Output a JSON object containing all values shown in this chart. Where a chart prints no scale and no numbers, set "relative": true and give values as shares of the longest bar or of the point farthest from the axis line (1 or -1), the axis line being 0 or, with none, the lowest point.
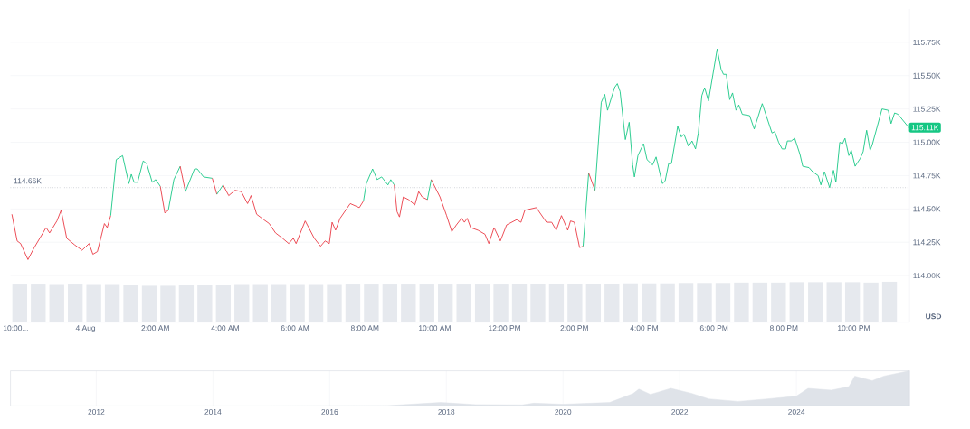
{
  "chart_data": [
    {
      "type": "line",
      "xlim": [
        -2.15,
        23.6
      ],
      "ylim": [
        113.65,
        116.0
      ],
      "grid": "y",
      "xticks": [
        {
          "value": -2,
          "label": "10:00..."
        },
        {
          "value": 0,
          "label": "4 Aug"
        },
        {
          "value": 2,
          "label": "2:00 AM"
        },
        {
          "value": 4,
          "label": "4:00 AM"
        },
        {
          "value": 6,
          "label": "6:00 AM"
        },
        {
          "value": 8,
          "label": "8:00 AM"
        },
        {
          "value": 10,
          "label": "10:00 AM"
        },
        {
          "value": 12,
          "label": "12:00 PM"
        },
        {
          "value": 14,
          "label": "2:00 PM"
        },
        {
          "value": 16,
          "label": "4:00 PM"
        },
        {
          "value": 18,
          "label": "6:00 PM"
        },
        {
          "value": 20,
          "label": "8:00 PM"
        },
        {
          "value": 22,
          "label": "10:00 PM"
        }
      ],
      "yticks": [
        {
          "value": 114.0,
          "label": "114.00K"
        },
        {
          "value": 114.25,
          "label": "114.25K"
        },
        {
          "value": 114.5,
          "label": "114.50K"
        },
        {
          "value": 114.75,
          "label": "114.75K"
        },
        {
          "value": 115.0,
          "label": "115.00K"
        },
        {
          "value": 115.25,
          "label": "115.25K"
        },
        {
          "value": 115.5,
          "label": "115.50K"
        },
        {
          "value": 115.75,
          "label": "115.75K"
        }
      ],
      "ref_lines": [
        {
          "axis": "y",
          "value": 114.66,
          "label": "114.66K",
          "line_style": "dotted",
          "color": "#8a919e"
        }
      ],
      "annotations": [
        {
          "text": "115.11K",
          "x": 23.58,
          "y": 115.11
        },
        "USD"
      ],
      "series": [
        {
          "color": "#ea3943",
          "x": [
            -2.11,
            -1.96,
            -1.86,
            -1.65,
            -1.47,
            -1.13,
            -1.03,
            -0.82,
            -0.7,
            -0.54,
            -0.31,
            -0.1,
            0.1,
            0.21,
            0.34,
            0.54,
            0.62,
            0.72
          ],
          "values": [
            114.46,
            114.26,
            114.24,
            114.12,
            114.21,
            114.36,
            114.32,
            114.41,
            114.49,
            114.28,
            114.23,
            114.19,
            114.24,
            114.16,
            114.18,
            114.39,
            114.36,
            114.45
          ]
        },
        {
          "color": "#16c784",
          "x": [
            0.72,
            0.88,
            1.06,
            1.24,
            1.31,
            1.39,
            1.49,
            1.65,
            1.75,
            1.91,
            2.01,
            2.14
          ],
          "values": [
            114.45,
            114.87,
            114.9,
            114.69,
            114.76,
            114.7,
            114.7,
            114.86,
            114.84,
            114.7,
            114.72,
            114.67
          ]
        },
        {
          "color": "#ea3943",
          "x": [
            2.14,
            2.27,
            2.37
          ],
          "values": [
            114.67,
            114.47,
            114.49
          ]
        },
        {
          "color": "#16c784",
          "x": [
            2.37,
            2.53,
            2.71
          ],
          "values": [
            114.49,
            114.72,
            114.82
          ]
        },
        {
          "color": "#ea3943",
          "x": [
            2.71,
            2.86
          ],
          "values": [
            114.82,
            114.63
          ]
        },
        {
          "color": "#16c784",
          "x": [
            2.86,
            3.12,
            3.2,
            3.38,
            3.63
          ],
          "values": [
            114.63,
            114.8,
            114.8,
            114.74,
            114.73
          ]
        },
        {
          "color": "#ea3943",
          "x": [
            3.63,
            3.76
          ],
          "values": [
            114.73,
            114.61
          ]
        },
        {
          "color": "#16c784",
          "x": [
            3.76,
            3.94
          ],
          "values": [
            114.61,
            114.68
          ]
        },
        {
          "color": "#ea3943",
          "x": [
            3.94,
            4.1,
            4.28,
            4.46,
            4.64,
            4.74,
            4.9,
            5.1,
            5.26,
            5.44,
            5.64,
            5.82,
            5.95,
            6.03,
            6.29,
            6.55,
            6.73,
            6.86,
            6.98,
            7.06,
            7.16,
            7.29,
            7.58,
            7.84,
            7.96
          ],
          "values": [
            114.68,
            114.6,
            114.64,
            114.63,
            114.54,
            114.6,
            114.46,
            114.42,
            114.39,
            114.32,
            114.28,
            114.24,
            114.28,
            114.24,
            114.41,
            114.28,
            114.22,
            114.26,
            114.24,
            114.4,
            114.34,
            114.43,
            114.54,
            114.51,
            114.56
          ]
        },
        {
          "color": "#16c784",
          "x": [
            7.96,
            8.04,
            8.22,
            8.35,
            8.48,
            8.66,
            8.74,
            8.84
          ],
          "values": [
            114.56,
            114.69,
            114.8,
            114.72,
            114.74,
            114.68,
            114.72,
            114.68
          ]
        },
        {
          "color": "#ea3943",
          "x": [
            8.84,
            8.92,
            8.99,
            9.1,
            9.25,
            9.43,
            9.54,
            9.64,
            9.79
          ],
          "values": [
            114.68,
            114.48,
            114.44,
            114.59,
            114.57,
            114.53,
            114.63,
            114.59,
            114.57
          ]
        },
        {
          "color": "#16c784",
          "x": [
            9.79,
            9.9
          ],
          "values": [
            114.57,
            114.72
          ]
        },
        {
          "color": "#ea3943",
          "x": [
            9.9,
            10.15,
            10.34,
            10.49,
            10.62,
            10.77,
            10.85,
            10.93,
            11.03,
            11.24,
            11.44,
            11.55,
            11.7,
            11.88,
            12.06,
            12.35,
            12.47,
            12.58,
            12.91,
            13.2,
            13.35,
            13.48,
            13.63,
            13.81,
            13.89,
            14.0,
            14.15,
            14.25
          ],
          "values": [
            114.72,
            114.59,
            114.45,
            114.33,
            114.38,
            114.43,
            114.4,
            114.43,
            114.36,
            114.34,
            114.31,
            114.24,
            114.36,
            114.26,
            114.38,
            114.42,
            114.4,
            114.49,
            114.51,
            114.4,
            114.4,
            114.34,
            114.45,
            114.34,
            114.41,
            114.4,
            114.21,
            114.22
          ]
        },
        {
          "color": "#16c784",
          "x": [
            14.25,
            14.41
          ],
          "values": [
            114.22,
            114.77
          ]
        },
        {
          "color": "#ea3943",
          "x": [
            14.41,
            14.59
          ],
          "values": [
            114.77,
            114.64
          ]
        },
        {
          "color": "#16c784",
          "x": [
            14.59,
            14.77,
            14.87,
            14.95,
            15.15,
            15.23,
            15.31,
            15.46,
            15.57,
            15.67,
            15.72,
            15.82,
            15.98,
            16.08,
            16.24,
            16.34,
            16.52,
            16.6,
            16.7,
            16.78,
            16.96,
            17.06,
            17.14,
            17.27,
            17.37,
            17.47,
            17.55,
            17.65,
            17.73,
            17.84,
            18.09,
            18.2,
            18.27,
            18.35,
            18.45,
            18.53,
            18.63,
            18.71,
            18.81,
            19.02,
            19.15,
            19.38,
            19.66,
            19.74,
            19.85,
            19.95,
            20.05,
            20.1,
            20.21,
            20.31,
            20.46,
            20.54,
            20.72,
            20.82,
            20.98,
            21.06,
            21.16,
            21.31,
            21.42,
            21.49,
            21.6,
            21.68,
            21.75,
            21.86,
            21.93,
            22.04,
            22.19,
            22.27,
            22.37,
            22.47,
            22.53,
            22.81,
            22.99,
            23.07,
            23.17,
            23.27,
            23.58
          ],
          "values": [
            114.64,
            115.3,
            115.36,
            115.24,
            115.41,
            115.44,
            115.38,
            115.02,
            115.15,
            114.83,
            114.74,
            114.9,
            114.99,
            114.87,
            114.83,
            114.89,
            114.69,
            114.71,
            114.84,
            114.84,
            115.12,
            115.04,
            115.06,
            114.97,
            115.01,
            114.95,
            115.07,
            115.35,
            115.41,
            115.31,
            115.7,
            115.55,
            115.51,
            115.51,
            115.32,
            115.37,
            115.24,
            115.28,
            115.21,
            115.2,
            115.1,
            115.29,
            115.07,
            115.08,
            115.0,
            114.95,
            114.95,
            115.01,
            115.01,
            115.03,
            114.91,
            114.82,
            114.81,
            114.78,
            114.75,
            114.68,
            114.78,
            114.66,
            114.79,
            114.7,
            115.0,
            114.99,
            115.03,
            114.9,
            114.94,
            114.82,
            114.88,
            114.93,
            115.09,
            114.94,
            114.98,
            115.25,
            115.24,
            115.14,
            115.22,
            115.21,
            115.11
          ]
        }
      ]
    },
    {
      "type": "bar",
      "relative": true,
      "color": "#e6e9ee",
      "categories": [
        null,
        null,
        null,
        null,
        null,
        null,
        null,
        null,
        null,
        null,
        null,
        null,
        null,
        null,
        null,
        null,
        null,
        null,
        null,
        null,
        null,
        null,
        null,
        null,
        null,
        null,
        null,
        null,
        null,
        null,
        null,
        null,
        null,
        null,
        null,
        null,
        null,
        null,
        null,
        null,
        null,
        null,
        null,
        null,
        null,
        null,
        null,
        null
      ],
      "values": [
        0.93,
        0.93,
        0.92,
        0.93,
        0.92,
        0.92,
        0.91,
        0.9,
        0.9,
        0.91,
        0.91,
        0.91,
        0.92,
        0.92,
        0.92,
        0.92,
        0.92,
        0.92,
        0.93,
        0.93,
        0.93,
        0.93,
        0.93,
        0.93,
        0.93,
        0.93,
        0.93,
        0.94,
        0.94,
        0.94,
        0.95,
        0.95,
        0.95,
        0.96,
        0.96,
        0.96,
        0.97,
        0.97,
        0.97,
        0.98,
        0.98,
        0.98,
        0.99,
        0.99,
        0.99,
        0.99,
        0.98,
        1.0
      ]
    },
    {
      "type": "area",
      "relative": true,
      "color": "#dfe3e9",
      "grid": "x",
      "xlim": [
        2010.53,
        2025.94
      ],
      "xticks": [
        2012,
        2014,
        2016,
        2018,
        2020,
        2022,
        2024
      ],
      "x": [
        2010.53,
        2013.0,
        2015.0,
        2017.0,
        2017.9,
        2018.1,
        2018.5,
        2019.3,
        2019.5,
        2020.0,
        2020.8,
        2021.2,
        2021.3,
        2021.5,
        2021.85,
        2022.2,
        2022.5,
        2023.0,
        2023.5,
        2024.0,
        2024.2,
        2024.6,
        2024.9,
        2025.0,
        2025.3,
        2025.5,
        2025.94
      ],
      "values": [
        0.0,
        0.0,
        0.0,
        0.01,
        0.1,
        0.08,
        0.04,
        0.03,
        0.08,
        0.05,
        0.1,
        0.35,
        0.48,
        0.33,
        0.5,
        0.36,
        0.2,
        0.13,
        0.2,
        0.28,
        0.5,
        0.45,
        0.55,
        0.85,
        0.72,
        0.85,
        1.0
      ]
    }
  ]
}
